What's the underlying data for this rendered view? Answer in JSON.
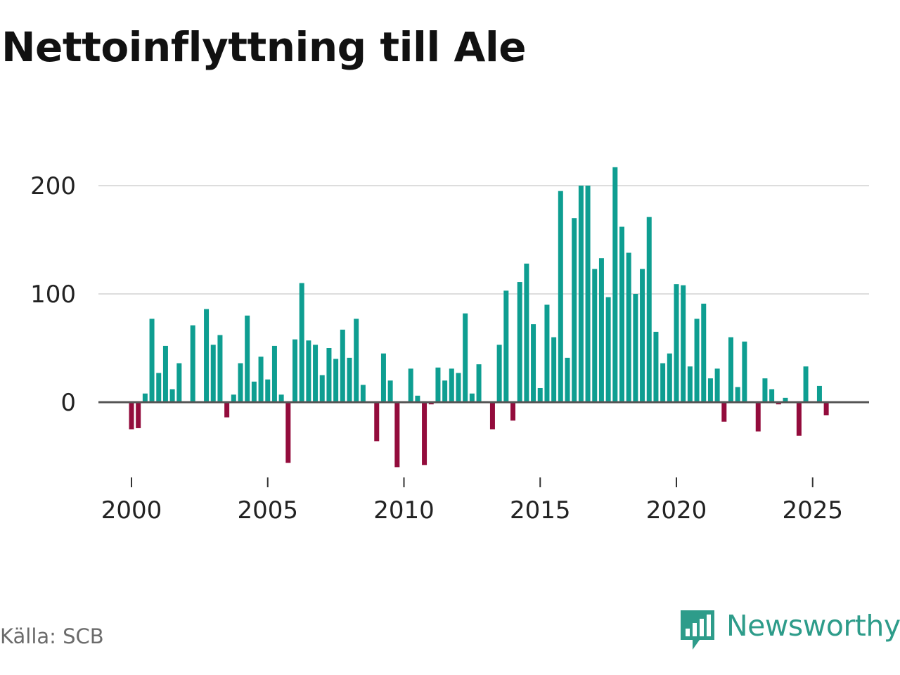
{
  "title": "Nettoinflyttning till Ale",
  "source": "Källa: SCB",
  "brand": {
    "name": "Newsworthy",
    "icon": "newsworthy-logo-icon"
  },
  "colors": {
    "positive": "#0e9e91",
    "negative": "#930c3c",
    "grid": "#dddddd",
    "axis": "#555555",
    "brand": "#2e9c8a"
  },
  "chart_data": {
    "type": "bar",
    "title": "Nettoinflyttning till Ale",
    "xlabel": "",
    "ylabel": "",
    "ylim": [
      -60,
      220
    ],
    "xlim": [
      1999.95,
      2027.6
    ],
    "grid": true,
    "x_ticks": [
      "2000",
      "2005",
      "2010",
      "2015",
      "2020",
      "2025"
    ],
    "y_ticks": [
      "0",
      "100",
      "200"
    ],
    "x": [
      2000.0,
      2000.25,
      2000.5,
      2000.75,
      2001.0,
      2001.25,
      2001.5,
      2001.75,
      2002.0,
      2002.25,
      2002.5,
      2002.75,
      2003.0,
      2003.25,
      2003.5,
      2003.75,
      2004.0,
      2004.25,
      2004.5,
      2004.75,
      2005.0,
      2005.25,
      2005.5,
      2005.75,
      2006.0,
      2006.25,
      2006.5,
      2006.75,
      2007.0,
      2007.25,
      2007.5,
      2007.75,
      2008.0,
      2008.25,
      2008.5,
      2008.75,
      2009.0,
      2009.25,
      2009.5,
      2009.75,
      2010.0,
      2010.25,
      2010.5,
      2010.75,
      2011.0,
      2011.25,
      2011.5,
      2011.75,
      2012.0,
      2012.25,
      2012.5,
      2012.75,
      2013.0,
      2013.25,
      2013.5,
      2013.75,
      2014.0,
      2014.25,
      2014.5,
      2014.75,
      2015.0,
      2015.25,
      2015.5,
      2015.75,
      2016.0,
      2016.25,
      2016.5,
      2016.75,
      2017.0,
      2017.25,
      2017.5,
      2017.75,
      2018.0,
      2018.25,
      2018.5,
      2018.75,
      2019.0,
      2019.25,
      2019.5,
      2019.75,
      2020.0,
      2020.25,
      2020.5,
      2020.75,
      2021.0,
      2021.25,
      2021.5,
      2021.75,
      2022.0,
      2022.25,
      2022.5,
      2022.75,
      2023.0,
      2023.25,
      2023.5,
      2023.75,
      2024.0,
      2024.25,
      2024.5,
      2024.75,
      2025.0,
      2025.25,
      2025.5
    ],
    "values": [
      -25,
      -24,
      8,
      77,
      27,
      52,
      12,
      36,
      0,
      71,
      1,
      86,
      53,
      62,
      -14,
      7,
      36,
      80,
      19,
      42,
      21,
      52,
      7,
      -56,
      58,
      110,
      57,
      53,
      25,
      50,
      40,
      67,
      41,
      77,
      16,
      0,
      -36,
      45,
      20,
      -60,
      -1,
      31,
      6,
      -58,
      -2,
      32,
      20,
      31,
      27,
      82,
      8,
      35,
      1,
      -25,
      53,
      103,
      -17,
      111,
      128,
      72,
      13,
      90,
      60,
      195,
      41,
      170,
      200,
      200,
      123,
      133,
      97,
      217,
      162,
      138,
      100,
      123,
      171,
      65,
      36,
      45,
      109,
      108,
      33,
      77,
      91,
      22,
      31,
      -18,
      60,
      14,
      56,
      1,
      -27,
      22,
      12,
      -2,
      4,
      0,
      -31,
      33,
      0,
      15,
      -12
    ]
  }
}
